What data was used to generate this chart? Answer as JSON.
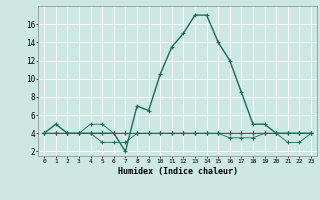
{
  "title": "",
  "xlabel": "Humidex (Indice chaleur)",
  "bg_color": "#cce8e0",
  "grid_color": "#ffffff",
  "line_color": "#1a6b5a",
  "x_ticks": [
    0,
    1,
    2,
    3,
    4,
    5,
    6,
    7,
    8,
    9,
    10,
    11,
    12,
    13,
    14,
    15,
    16,
    17,
    18,
    19,
    20,
    21,
    22,
    23
  ],
  "y_ticks": [
    2,
    4,
    6,
    8,
    10,
    12,
    14,
    16
  ],
  "xlim": [
    -0.5,
    23.5
  ],
  "ylim": [
    1.5,
    18.0
  ],
  "series": [
    [
      4.0,
      5.0,
      4.0,
      4.0,
      4.0,
      4.0,
      4.0,
      2.0,
      7.0,
      6.5,
      10.5,
      13.5,
      15.0,
      17.0,
      17.0,
      14.0,
      12.0,
      8.5,
      5.0,
      5.0,
      4.0,
      4.0,
      4.0,
      4.0
    ],
    [
      4.0,
      4.0,
      4.0,
      4.0,
      4.0,
      3.0,
      3.0,
      3.0,
      4.0,
      4.0,
      4.0,
      4.0,
      4.0,
      4.0,
      4.0,
      4.0,
      4.0,
      4.0,
      4.0,
      4.0,
      4.0,
      3.0,
      3.0,
      4.0
    ],
    [
      4.0,
      4.0,
      4.0,
      4.0,
      5.0,
      5.0,
      4.0,
      4.0,
      4.0,
      4.0,
      4.0,
      4.0,
      4.0,
      4.0,
      4.0,
      4.0,
      3.5,
      3.5,
      3.5,
      4.0,
      4.0,
      4.0,
      4.0,
      4.0
    ],
    [
      4.0,
      4.0,
      4.0,
      4.0,
      4.0,
      4.0,
      4.0,
      4.0,
      4.0,
      4.0,
      4.0,
      4.0,
      4.0,
      4.0,
      4.0,
      4.0,
      4.0,
      4.0,
      4.0,
      4.0,
      4.0,
      4.0,
      4.0,
      4.0
    ]
  ],
  "linewidths": [
    1.0,
    0.6,
    0.6,
    0.6
  ],
  "markersizes": [
    3.5,
    2.5,
    2.5,
    2.5
  ]
}
